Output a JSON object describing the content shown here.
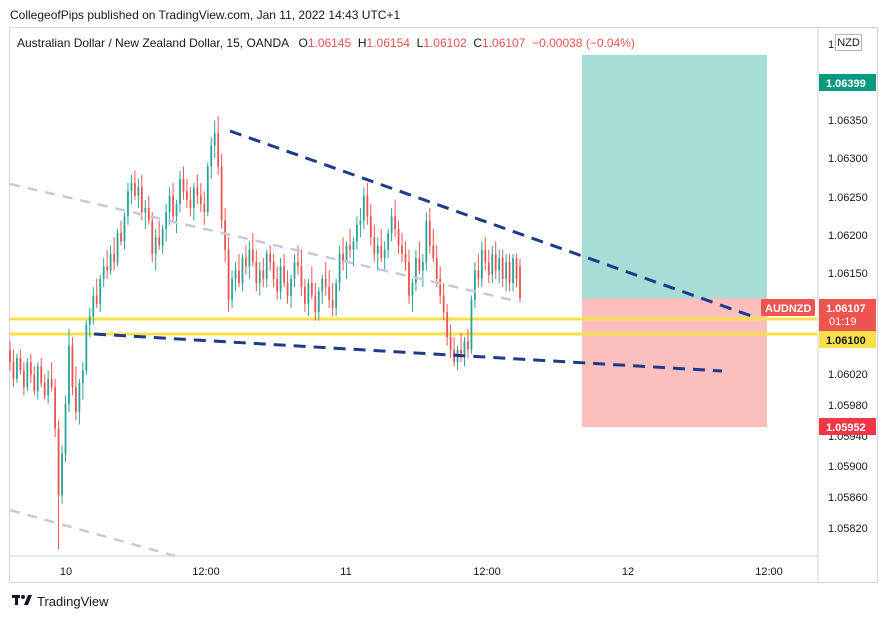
{
  "publisher_line": "CollegeofPips published on TradingView.com, Jan 11, 2022 14:43 UTC+1",
  "legend": {
    "symbol": "Australian Dollar / New Zealand Dollar, 15, OANDA",
    "open_label": "O",
    "open": "1.06145",
    "high_label": "H",
    "high": "1.06154",
    "low_label": "L",
    "low": "1.06102",
    "close_label": "C",
    "close": "1.06107",
    "change": "−0.00038 (−0.04%)"
  },
  "currency_badge": "NZD",
  "footer": {
    "brand": "TradingView",
    "logo": "tradingview-logo"
  },
  "chart_data": {
    "type": "candlestick",
    "symbol": "AUDNZD",
    "y_range": [
      1.058,
      1.064
    ],
    "price_ticks": [
      "1.06350",
      "1.06300",
      "1.06250",
      "1.06200",
      "1.06150",
      "1.06020",
      "1.05980",
      "1.05940",
      "1.05900",
      "1.05860",
      "1.05820"
    ],
    "price_labels": [
      {
        "text": "1.06399",
        "value": 1.06399,
        "color": "#089981"
      },
      {
        "text": "AUDNZD",
        "value": 1.06107,
        "color": "#ef5350",
        "side": "left"
      },
      {
        "text": "1.06107",
        "value": 1.06107,
        "color": "#ef5350"
      },
      {
        "text": "01:19",
        "value": 1.06107,
        "color": "#ef5350",
        "row": 2
      },
      {
        "text": "1.06100",
        "value": 1.061,
        "color": "#f9e04b",
        "text_color": "#131722"
      },
      {
        "text": "1.05952",
        "value": 1.05952,
        "color": "#f23645"
      }
    ],
    "time_ticks": [
      {
        "text": "10",
        "bar": 0
      },
      {
        "text": "12:00",
        "bar": 48
      },
      {
        "text": "11",
        "bar": 96
      },
      {
        "text": "12:00",
        "bar": 144
      },
      {
        "text": "12",
        "bar": 192
      },
      {
        "text": "12:00",
        "bar": 240
      }
    ],
    "bar_count_visible": 275,
    "first_bar_offset": -19,
    "candles": [
      [
        1.06045,
        1.06055,
        1.0602,
        1.0603
      ],
      [
        1.0603,
        1.06045,
        1.06,
        1.0601
      ],
      [
        1.0601,
        1.0604,
        1.06005,
        1.06035
      ],
      [
        1.06035,
        1.06045,
        1.06015,
        1.0602
      ],
      [
        1.0602,
        1.0603,
        1.0599,
        1.06
      ],
      [
        1.06,
        1.06035,
        1.05995,
        1.0603
      ],
      [
        1.0603,
        1.0604,
        1.06005,
        1.06015
      ],
      [
        1.06015,
        1.06025,
        1.0599,
        1.05995
      ],
      [
        1.05995,
        1.0603,
        1.05985,
        1.06025
      ],
      [
        1.06025,
        1.06035,
        1.06,
        1.06005
      ],
      [
        1.06005,
        1.06015,
        1.05985,
        1.0599
      ],
      [
        1.0599,
        1.0602,
        1.0598,
        1.0601
      ],
      [
        1.0601,
        1.0603,
        1.05995,
        1.06
      ],
      [
        1.06,
        1.0601,
        1.0594,
        1.0595
      ],
      [
        1.0595,
        1.0596,
        1.05805,
        1.0587
      ],
      [
        1.0587,
        1.0593,
        1.0586,
        1.0592
      ],
      [
        1.0592,
        1.0599,
        1.0591,
        1.0598
      ],
      [
        1.0598,
        1.0607,
        1.0597,
        1.0605
      ],
      [
        1.0605,
        1.0606,
        1.0599,
        1.06
      ],
      [
        1.06,
        1.06025,
        1.0596,
        1.0597
      ],
      [
        1.0597,
        1.0601,
        1.05955,
        1.06005
      ],
      [
        1.06005,
        1.0603,
        1.05985,
        1.0602
      ],
      [
        1.0602,
        1.0608,
        1.06015,
        1.06075
      ],
      [
        1.06075,
        1.06095,
        1.0606,
        1.06085
      ],
      [
        1.06085,
        1.0612,
        1.06075,
        1.0611
      ],
      [
        1.0611,
        1.0613,
        1.06095,
        1.061
      ],
      [
        1.061,
        1.06135,
        1.0609,
        1.0613
      ],
      [
        1.0613,
        1.06155,
        1.0612,
        1.06145
      ],
      [
        1.06145,
        1.06165,
        1.0613,
        1.0614
      ],
      [
        1.0614,
        1.0617,
        1.06135,
        1.0616
      ],
      [
        1.0616,
        1.0618,
        1.0614,
        1.0615
      ],
      [
        1.0615,
        1.0619,
        1.06145,
        1.06185
      ],
      [
        1.06185,
        1.062,
        1.0617,
        1.06175
      ],
      [
        1.06175,
        1.0621,
        1.06165,
        1.06205
      ],
      [
        1.06205,
        1.06245,
        1.06195,
        1.06235
      ],
      [
        1.06235,
        1.06255,
        1.0622,
        1.06245
      ],
      [
        1.06245,
        1.0626,
        1.06225,
        1.0623
      ],
      [
        1.0623,
        1.0625,
        1.06215,
        1.0624
      ],
      [
        1.0624,
        1.06255,
        1.062,
        1.0621
      ],
      [
        1.0621,
        1.06225,
        1.0619,
        1.06215
      ],
      [
        1.06215,
        1.0623,
        1.06195,
        1.062
      ],
      [
        1.062,
        1.0621,
        1.0615,
        1.0616
      ],
      [
        1.0616,
        1.0619,
        1.0614,
        1.0618
      ],
      [
        1.0618,
        1.062,
        1.06165,
        1.0617
      ],
      [
        1.0617,
        1.06195,
        1.0616,
        1.0619
      ],
      [
        1.0619,
        1.0622,
        1.06175,
        1.0621
      ],
      [
        1.0621,
        1.0624,
        1.06195,
        1.0623
      ],
      [
        1.0623,
        1.06245,
        1.062,
        1.06205
      ],
      [
        1.06205,
        1.06225,
        1.06185,
        1.0622
      ],
      [
        1.0622,
        1.0626,
        1.0621,
        1.0625
      ],
      [
        1.0625,
        1.06265,
        1.06225,
        1.06235
      ],
      [
        1.06235,
        1.0625,
        1.06215,
        1.06225
      ],
      [
        1.06225,
        1.0624,
        1.06205,
        1.06215
      ],
      [
        1.06215,
        1.06245,
        1.062,
        1.0624
      ],
      [
        1.0624,
        1.06255,
        1.0622,
        1.0623
      ],
      [
        1.0623,
        1.06245,
        1.0621,
        1.0622
      ],
      [
        1.0622,
        1.06235,
        1.06195,
        1.0621
      ],
      [
        1.0621,
        1.0627,
        1.06205,
        1.06265
      ],
      [
        1.06265,
        1.063,
        1.0625,
        1.0629
      ],
      [
        1.0629,
        1.0632,
        1.06275,
        1.06305
      ],
      [
        1.06305,
        1.06325,
        1.06255,
        1.06265
      ],
      [
        1.06265,
        1.0628,
        1.0619,
        1.062
      ],
      [
        1.062,
        1.06215,
        1.0615,
        1.06165
      ],
      [
        1.06165,
        1.0618,
        1.0609,
        1.06105
      ],
      [
        1.06105,
        1.0614,
        1.06095,
        1.0613
      ],
      [
        1.0613,
        1.0615,
        1.06115,
        1.0614
      ],
      [
        1.0614,
        1.0616,
        1.0612,
        1.06125
      ],
      [
        1.06125,
        1.0616,
        1.06115,
        1.06155
      ],
      [
        1.06155,
        1.0617,
        1.06135,
        1.06145
      ],
      [
        1.06145,
        1.06175,
        1.0613,
        1.06165
      ],
      [
        1.06165,
        1.06185,
        1.06145,
        1.0615
      ],
      [
        1.0615,
        1.06165,
        1.06115,
        1.06125
      ],
      [
        1.06125,
        1.0615,
        1.0611,
        1.0614
      ],
      [
        1.0614,
        1.06155,
        1.0612,
        1.0613
      ],
      [
        1.0613,
        1.06165,
        1.0612,
        1.0616
      ],
      [
        1.0616,
        1.0617,
        1.0614,
        1.0615
      ],
      [
        1.0615,
        1.0616,
        1.0612,
        1.0613
      ],
      [
        1.0613,
        1.06145,
        1.06105,
        1.06115
      ],
      [
        1.06115,
        1.06155,
        1.06105,
        1.06145
      ],
      [
        1.06145,
        1.0616,
        1.0612,
        1.06125
      ],
      [
        1.06125,
        1.0614,
        1.061,
        1.0611
      ],
      [
        1.0611,
        1.06135,
        1.06095,
        1.0613
      ],
      [
        1.0613,
        1.0616,
        1.0612,
        1.0615
      ],
      [
        1.0615,
        1.0617,
        1.06135,
        1.06145
      ],
      [
        1.06145,
        1.06165,
        1.0611,
        1.0612
      ],
      [
        1.0612,
        1.0613,
        1.0609,
        1.061
      ],
      [
        1.061,
        1.0613,
        1.06085,
        1.06125
      ],
      [
        1.06125,
        1.06145,
        1.06105,
        1.0611
      ],
      [
        1.0611,
        1.06125,
        1.0608,
        1.0609
      ],
      [
        1.0609,
        1.0612,
        1.0608,
        1.06115
      ],
      [
        1.06115,
        1.06135,
        1.061,
        1.0613
      ],
      [
        1.0613,
        1.0615,
        1.0611,
        1.0612
      ],
      [
        1.0612,
        1.0614,
        1.06095,
        1.06105
      ],
      [
        1.06105,
        1.06125,
        1.06085,
        1.06095
      ],
      [
        1.06095,
        1.0613,
        1.06085,
        1.06125
      ],
      [
        1.06125,
        1.0617,
        1.06115,
        1.0616
      ],
      [
        1.0616,
        1.0618,
        1.0614,
        1.0615
      ],
      [
        1.0615,
        1.06175,
        1.0613,
        1.0617
      ],
      [
        1.0617,
        1.0619,
        1.06155,
        1.06165
      ],
      [
        1.06165,
        1.0618,
        1.06145,
        1.06175
      ],
      [
        1.06175,
        1.06205,
        1.06165,
        1.06195
      ],
      [
        1.06195,
        1.06215,
        1.0618,
        1.062
      ],
      [
        1.062,
        1.0624,
        1.0619,
        1.0623
      ],
      [
        1.0623,
        1.06245,
        1.06195,
        1.06205
      ],
      [
        1.06205,
        1.0622,
        1.0617,
        1.0618
      ],
      [
        1.0618,
        1.06195,
        1.0615,
        1.0616
      ],
      [
        1.0616,
        1.0618,
        1.0614,
        1.0617
      ],
      [
        1.0617,
        1.0619,
        1.0615,
        1.06155
      ],
      [
        1.06155,
        1.06175,
        1.0614,
        1.06165
      ],
      [
        1.06165,
        1.0619,
        1.06155,
        1.06185
      ],
      [
        1.06185,
        1.06215,
        1.06175,
        1.06205
      ],
      [
        1.06205,
        1.06225,
        1.0618,
        1.0619
      ],
      [
        1.0619,
        1.062,
        1.0616,
        1.0617
      ],
      [
        1.0617,
        1.06185,
        1.0615,
        1.0616
      ],
      [
        1.0616,
        1.06175,
        1.0614,
        1.0615
      ],
      [
        1.0615,
        1.06165,
        1.061,
        1.0611
      ],
      [
        1.0611,
        1.0613,
        1.0609,
        1.06125
      ],
      [
        1.06125,
        1.06165,
        1.06115,
        1.06155
      ],
      [
        1.06155,
        1.06175,
        1.06135,
        1.0614
      ],
      [
        1.0614,
        1.0616,
        1.0612,
        1.0615
      ],
      [
        1.0615,
        1.0621,
        1.0614,
        1.062
      ],
      [
        1.062,
        1.06215,
        1.0616,
        1.0617
      ],
      [
        1.0617,
        1.0619,
        1.0615,
        1.06155
      ],
      [
        1.06155,
        1.0617,
        1.0612,
        1.0613
      ],
      [
        1.0613,
        1.06145,
        1.061,
        1.0611
      ],
      [
        1.0611,
        1.06125,
        1.0608,
        1.0609
      ],
      [
        1.0609,
        1.061,
        1.0605,
        1.0606
      ],
      [
        1.0606,
        1.06075,
        1.06035,
        1.06045
      ],
      [
        1.06045,
        1.0606,
        1.06025,
        1.0603
      ],
      [
        1.0603,
        1.0605,
        1.0602,
        1.06045
      ],
      [
        1.06045,
        1.06065,
        1.0603,
        1.0604
      ],
      [
        1.0604,
        1.0606,
        1.06025,
        1.06055
      ],
      [
        1.06055,
        1.0607,
        1.06035,
        1.06045
      ],
      [
        1.06045,
        1.0611,
        1.0604,
        1.06105
      ],
      [
        1.06105,
        1.0615,
        1.06095,
        1.0614
      ],
      [
        1.0614,
        1.0616,
        1.0612,
        1.0613
      ],
      [
        1.0613,
        1.06175,
        1.0612,
        1.06165
      ],
      [
        1.06165,
        1.0618,
        1.0614,
        1.0615
      ],
      [
        1.0615,
        1.06165,
        1.06125,
        1.06135
      ],
      [
        1.06135,
        1.0617,
        1.06125,
        1.0616
      ],
      [
        1.0616,
        1.06175,
        1.0613,
        1.0614
      ],
      [
        1.0614,
        1.06165,
        1.06125,
        1.06155
      ],
      [
        1.06155,
        1.06165,
        1.0612,
        1.0613
      ],
      [
        1.0613,
        1.0616,
        1.06115,
        1.0615
      ],
      [
        1.0615,
        1.0616,
        1.06115,
        1.06125
      ],
      [
        1.06125,
        1.0616,
        1.06115,
        1.06155
      ],
      [
        1.06155,
        1.0616,
        1.0612,
        1.0613
      ],
      [
        1.06145,
        1.06154,
        1.06102,
        1.06107
      ]
    ],
    "overlays": {
      "zones": [
        {
          "name": "target-zone",
          "from": 1.06107,
          "to": 1.06399,
          "color": "#a7ddd7"
        },
        {
          "name": "stop-zone",
          "from": 1.05952,
          "to": 1.06107,
          "color": "#fbbfbe"
        }
      ],
      "horizontal_lines": [
        {
          "name": "support-line-upper",
          "value": 1.06107,
          "color": "#f9e04b"
        },
        {
          "name": "support-line-lower",
          "value": 1.061,
          "color": "#f9e04b"
        }
      ],
      "trendlines": [
        {
          "name": "upper-wedge-line",
          "color": "#1e3a8a",
          "dashed": true
        },
        {
          "name": "lower-wedge-line",
          "color": "#1e3a8a",
          "dashed": true
        },
        {
          "name": "channel-line-1",
          "color": "#c5c9dc",
          "dashed": true
        },
        {
          "name": "channel-line-2",
          "color": "#c5c9dc",
          "dashed": true
        }
      ]
    },
    "colors": {
      "up": "#26a69a",
      "down": "#ef5350",
      "grid": "#f0f3fa",
      "axis_text": "#131722"
    }
  }
}
